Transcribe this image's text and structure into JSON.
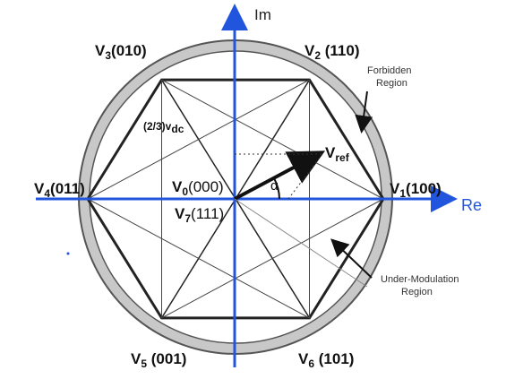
{
  "axes": {
    "imaginary": "Im",
    "real": "Re"
  },
  "vectors": [
    {
      "symbol": "V",
      "sub": "1",
      "code": "(100)"
    },
    {
      "symbol": "V",
      "sub": "2",
      "code": " (110)"
    },
    {
      "symbol": "V",
      "sub": "3",
      "code": "(010)"
    },
    {
      "symbol": "V",
      "sub": "4",
      "code": "(011)"
    },
    {
      "symbol": "V",
      "sub": "5",
      "code": " (001)"
    },
    {
      "symbol": "V",
      "sub": "6",
      "code": " (101)"
    }
  ],
  "zero_vectors": [
    {
      "symbol": "V",
      "sub": "0",
      "code": "(000)"
    },
    {
      "symbol": "V",
      "sub": "7",
      "code": "(111)"
    }
  ],
  "edge_label": {
    "main": "(2/3)v",
    "sub": "dc"
  },
  "reference": {
    "symbol": "V",
    "sub": "ref"
  },
  "angle": "α",
  "regions": {
    "forbidden": [
      "Forbidden",
      "Region"
    ],
    "under_modulation": [
      "Under-Modulation",
      "Region"
    ]
  }
}
